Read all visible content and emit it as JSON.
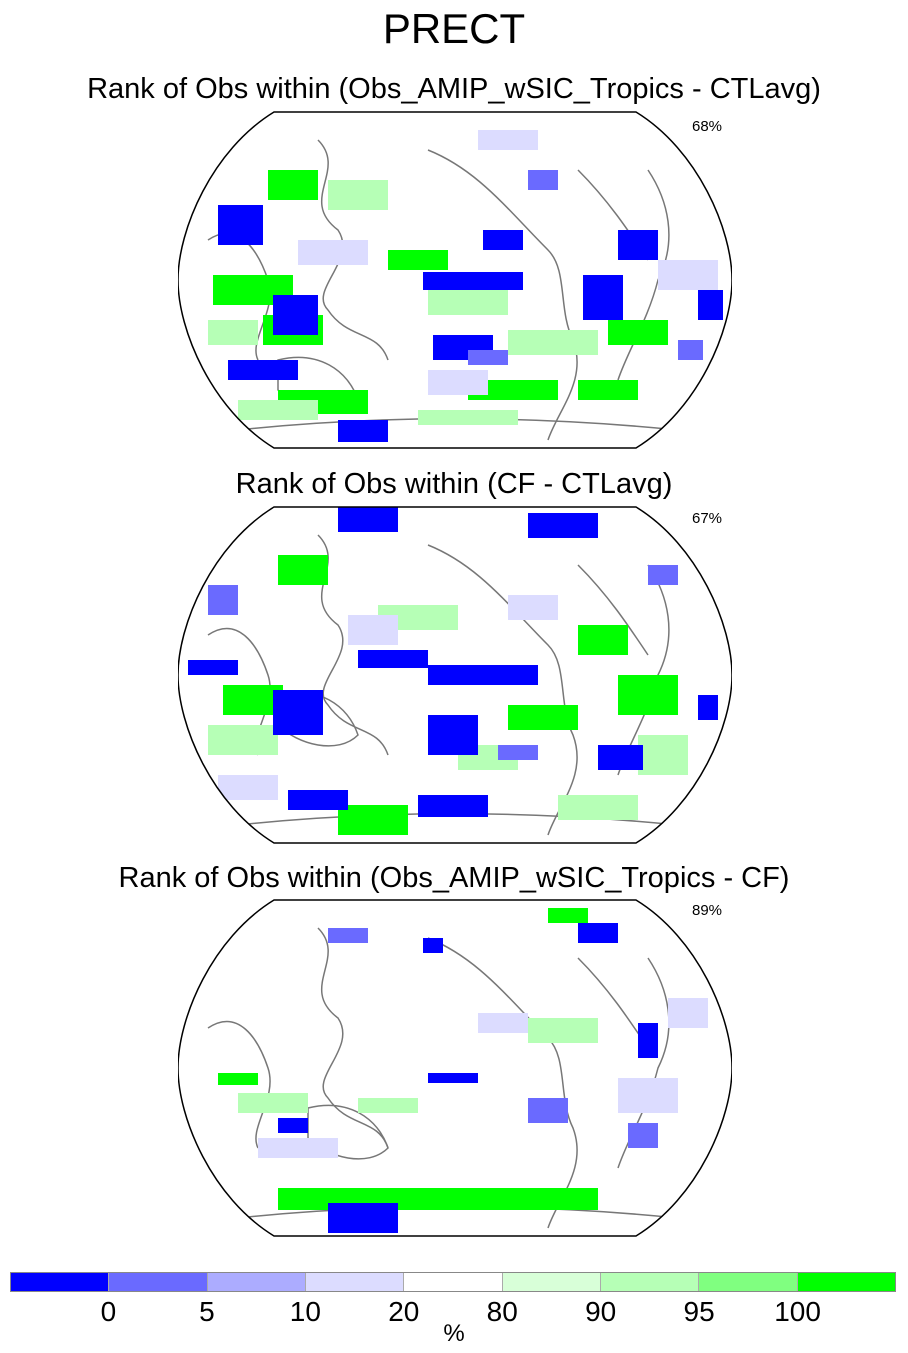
{
  "variable": "PRECT",
  "colors": {
    "land_outline": "#777777",
    "map_border": "#000000",
    "rank_0": "#0000ff",
    "rank_5": "#6a6aff",
    "rank_10": "#acacff",
    "rank_20": "#dcdcff",
    "rank_80": "#ffffff",
    "rank_90": "#d8ffd8",
    "rank_95": "#b6ffb6",
    "rank_100": "#80ff80",
    "rank_top": "#00ff00"
  },
  "panels": [
    {
      "title": "Rank of Obs within (Obs_AMIP_wSIC_Tropics - CTLavg)",
      "percent": "68%"
    },
    {
      "title": "Rank of Obs within (CF - CTLavg)",
      "percent": "67%"
    },
    {
      "title": "Rank of Obs within (Obs_AMIP_wSIC_Tropics - CF)",
      "percent": "89%"
    }
  ],
  "colorbar": {
    "colors": [
      "#0000ff",
      "#6a6aff",
      "#acacff",
      "#dcdcff",
      "#ffffff",
      "#d8ffd8",
      "#b6ffb6",
      "#80ff80",
      "#00ff00"
    ],
    "labels": [
      "0",
      "5",
      "10",
      "20",
      "80",
      "90",
      "95",
      "100"
    ],
    "unit": "%"
  }
}
